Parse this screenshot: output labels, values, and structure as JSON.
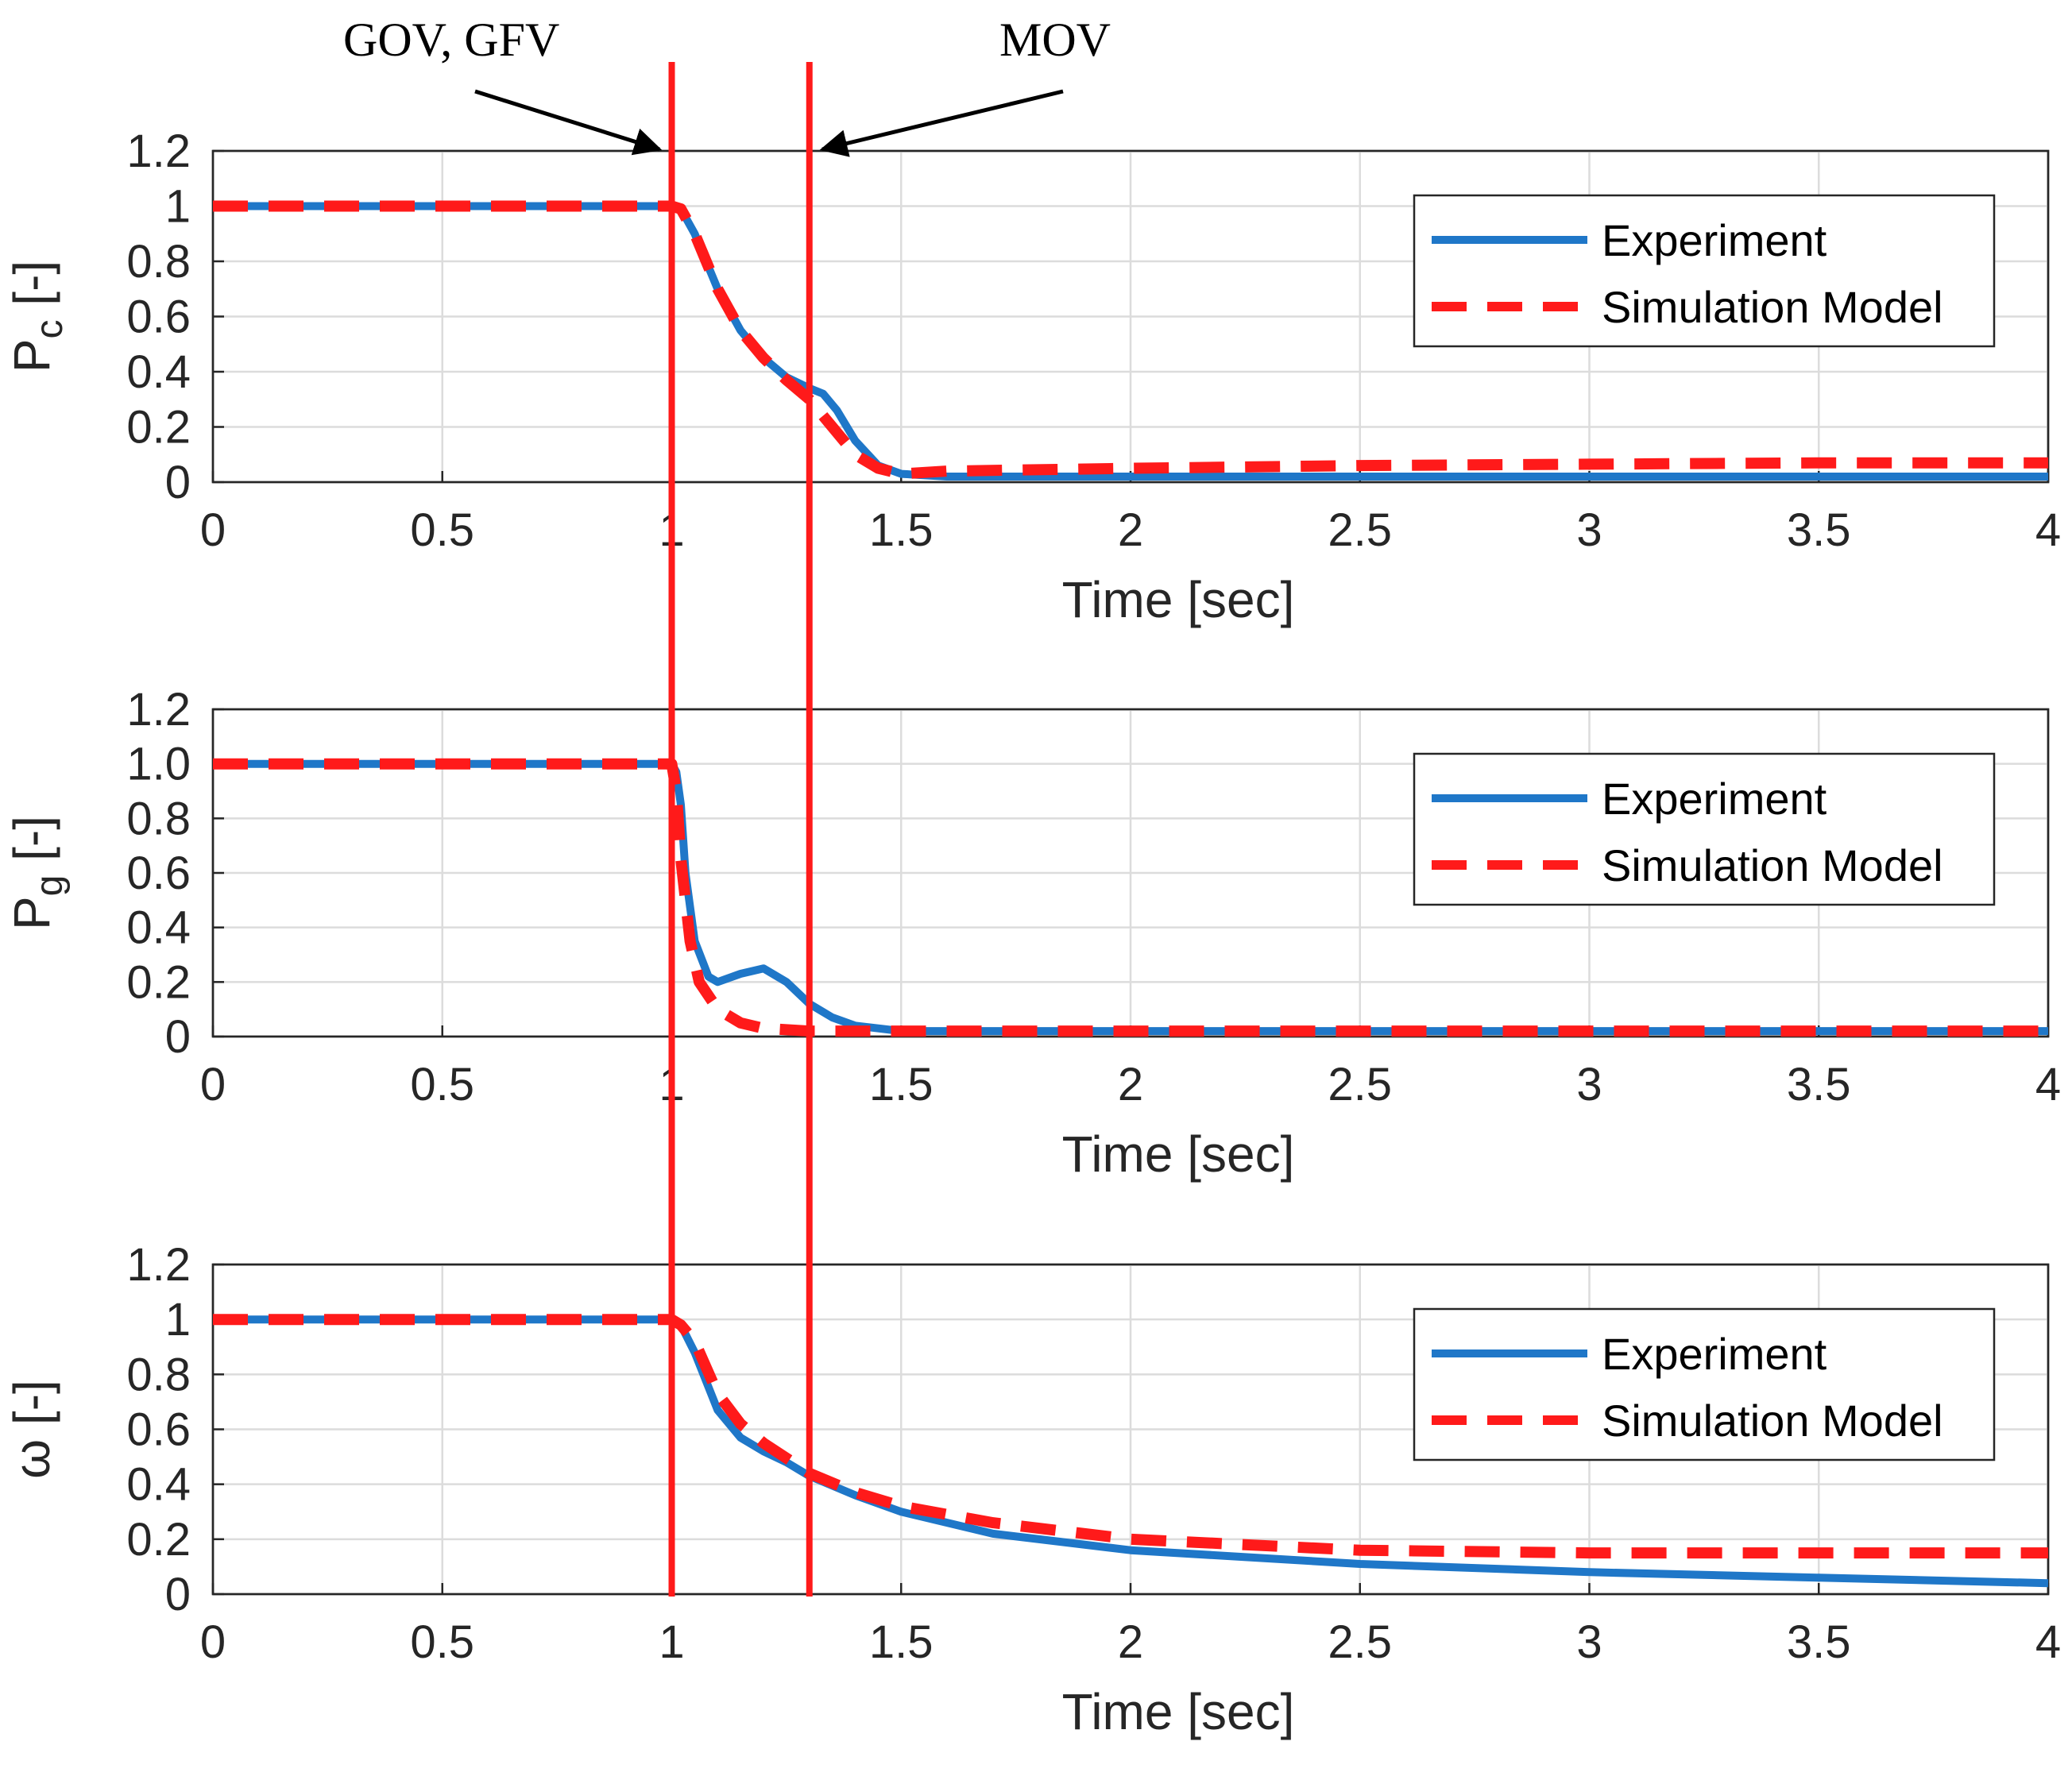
{
  "colors": {
    "experiment": "#1f77c8",
    "simulation": "#ff1a1a",
    "marker_line": "#ff1a1a"
  },
  "annotations": {
    "left_label": "GOV, GFV",
    "right_label": "MOV"
  },
  "markers": {
    "x_values": [
      1.0,
      1.3
    ]
  },
  "chart_data": [
    {
      "type": "line",
      "id": "pc",
      "ylabel_main": "P",
      "ylabel_sub": "c",
      "ylabel_unit": " [-]",
      "xlabel": "Time [sec]",
      "xlim": [
        0,
        4
      ],
      "ylim": [
        0,
        1.2
      ],
      "x_ticks": [
        "0",
        "0.5",
        "1",
        "1.5",
        "2",
        "2.5",
        "3",
        "3.5",
        "4"
      ],
      "y_ticks": [
        "0",
        "0.2",
        "0.4",
        "0.6",
        "0.8",
        "1",
        "1.2"
      ],
      "legend": [
        "Experiment",
        "Simulation Model"
      ],
      "series": [
        {
          "name": "Experiment",
          "x": [
            0,
            0.1,
            0.2,
            0.3,
            0.5,
            0.7,
            0.9,
            1.0,
            1.02,
            1.05,
            1.1,
            1.15,
            1.2,
            1.25,
            1.3,
            1.33,
            1.36,
            1.4,
            1.45,
            1.5,
            1.6,
            2.0,
            3.0,
            4.0
          ],
          "y": [
            1.0,
            1.0,
            1.0,
            1.0,
            1.0,
            1.0,
            1.0,
            1.0,
            0.99,
            0.9,
            0.7,
            0.55,
            0.45,
            0.38,
            0.34,
            0.32,
            0.26,
            0.15,
            0.06,
            0.03,
            0.02,
            0.02,
            0.02,
            0.02
          ]
        },
        {
          "name": "Simulation Model",
          "x": [
            0,
            0.5,
            1.0,
            1.02,
            1.05,
            1.1,
            1.15,
            1.2,
            1.25,
            1.3,
            1.35,
            1.4,
            1.45,
            1.5,
            1.6,
            2.0,
            2.5,
            3.0,
            3.5,
            4.0
          ],
          "y": [
            1.0,
            1.0,
            1.0,
            0.99,
            0.9,
            0.7,
            0.55,
            0.45,
            0.37,
            0.3,
            0.2,
            0.1,
            0.05,
            0.03,
            0.04,
            0.05,
            0.06,
            0.065,
            0.07,
            0.07
          ]
        }
      ]
    },
    {
      "type": "line",
      "id": "pg",
      "ylabel_main": "P",
      "ylabel_sub": "g",
      "ylabel_unit": " [-]",
      "xlabel": "Time [sec]",
      "xlim": [
        0,
        4
      ],
      "ylim": [
        0,
        1.2
      ],
      "x_ticks": [
        "0",
        "0.5",
        "1",
        "1.5",
        "2",
        "2.5",
        "3",
        "3.5",
        "4"
      ],
      "y_ticks": [
        "0",
        "0.2",
        "0.4",
        "0.6",
        "0.8",
        "1.0",
        "1.2"
      ],
      "legend": [
        "Experiment",
        "Simulation Model"
      ],
      "series": [
        {
          "name": "Experiment",
          "x": [
            0,
            0.2,
            0.5,
            0.8,
            1.0,
            1.01,
            1.02,
            1.03,
            1.05,
            1.08,
            1.1,
            1.15,
            1.2,
            1.25,
            1.3,
            1.35,
            1.4,
            1.45,
            1.5,
            2.0,
            3.0,
            4.0
          ],
          "y": [
            1.0,
            1.0,
            1.0,
            1.0,
            1.0,
            0.97,
            0.85,
            0.6,
            0.35,
            0.22,
            0.2,
            0.23,
            0.25,
            0.2,
            0.12,
            0.07,
            0.04,
            0.03,
            0.02,
            0.02,
            0.02,
            0.02
          ]
        },
        {
          "name": "Simulation Model",
          "x": [
            0,
            0.5,
            1.0,
            1.01,
            1.02,
            1.04,
            1.06,
            1.1,
            1.15,
            1.2,
            1.3,
            1.4,
            2.0,
            3.0,
            4.0
          ],
          "y": [
            1.0,
            1.0,
            1.0,
            0.9,
            0.65,
            0.35,
            0.2,
            0.1,
            0.05,
            0.03,
            0.02,
            0.02,
            0.02,
            0.02,
            0.02
          ]
        }
      ]
    },
    {
      "type": "line",
      "id": "omega",
      "ylabel_main": "ω",
      "ylabel_sub": "",
      "ylabel_unit": " [-]",
      "xlabel": "Time [sec]",
      "xlim": [
        0,
        4
      ],
      "ylim": [
        0,
        1.2
      ],
      "x_ticks": [
        "0",
        "0.5",
        "1",
        "1.5",
        "2",
        "2.5",
        "3",
        "3.5",
        "4"
      ],
      "y_ticks": [
        "0",
        "0.2",
        "0.4",
        "0.6",
        "0.8",
        "1",
        "1.2"
      ],
      "legend": [
        "Experiment",
        "Simulation Model"
      ],
      "series": [
        {
          "name": "Experiment",
          "x": [
            0,
            0.5,
            1.0,
            1.02,
            1.05,
            1.1,
            1.15,
            1.2,
            1.25,
            1.3,
            1.4,
            1.5,
            1.7,
            2.0,
            2.5,
            3.0,
            3.5,
            4.0
          ],
          "y": [
            1.0,
            1.0,
            1.0,
            0.98,
            0.88,
            0.67,
            0.57,
            0.52,
            0.48,
            0.43,
            0.36,
            0.3,
            0.22,
            0.16,
            0.11,
            0.08,
            0.06,
            0.04
          ]
        },
        {
          "name": "Simulation Model",
          "x": [
            0,
            0.5,
            1.0,
            1.02,
            1.05,
            1.1,
            1.15,
            1.2,
            1.3,
            1.4,
            1.5,
            1.7,
            2.0,
            2.5,
            3.0,
            3.5,
            4.0
          ],
          "y": [
            1.0,
            1.0,
            1.0,
            0.98,
            0.92,
            0.73,
            0.62,
            0.55,
            0.44,
            0.37,
            0.32,
            0.26,
            0.2,
            0.16,
            0.15,
            0.15,
            0.15
          ]
        }
      ]
    }
  ]
}
